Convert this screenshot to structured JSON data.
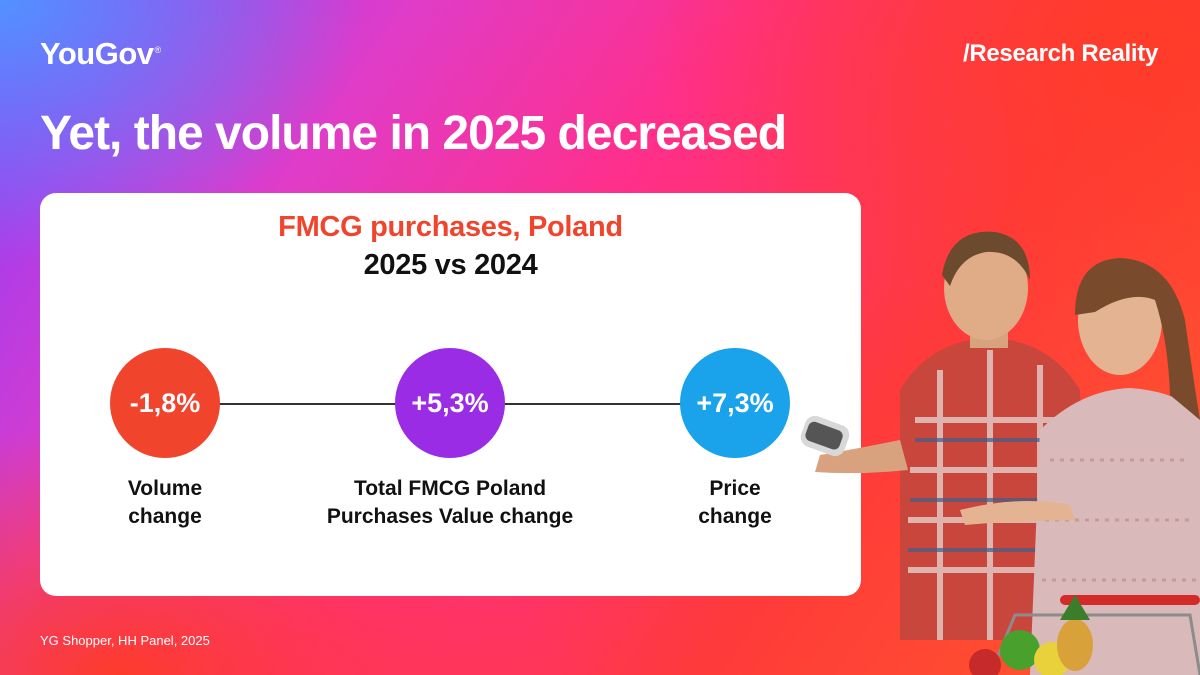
{
  "header": {
    "logo": "YouGov",
    "logo_mark": "®",
    "tagline": "/Research Reality",
    "headline": "Yet, the volume in 2025 decreased"
  },
  "card": {
    "title": "FMCG purchases, Poland",
    "subtitle": "2025 vs 2024",
    "metrics": [
      {
        "value": "-1,8%",
        "label_line1": "Volume",
        "label_line2": "change",
        "color": "#f0442d"
      },
      {
        "value": "+5,3%",
        "label_line1": "Total FMCG Poland",
        "label_line2": "Purchases Value change",
        "color": "#9b2ce6"
      },
      {
        "value": "+7,3%",
        "label_line1": "Price",
        "label_line2": "change",
        "color": "#1aa3ea"
      }
    ]
  },
  "footer": {
    "source": "YG Shopper, HH Panel, 2025"
  },
  "photo": {
    "subject": "couple-shopping-photo"
  }
}
